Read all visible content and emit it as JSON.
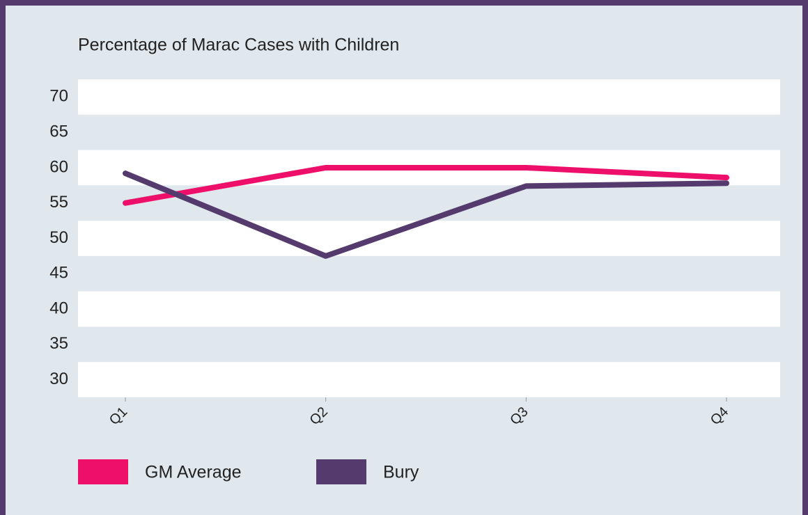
{
  "chart_data": {
    "type": "line",
    "title": "Percentage of Marac Cases with Children",
    "categories": [
      "Q1",
      "Q2",
      "Q3",
      "Q4"
    ],
    "series": [
      {
        "name": "GM Average",
        "color": "#ee0f6a",
        "values": [
          55,
          60,
          60,
          58.6
        ]
      },
      {
        "name": "Bury",
        "color": "#553a6e",
        "values": [
          59.2,
          47.5,
          57.4,
          57.8
        ]
      }
    ],
    "ylim": [
      27.5,
      72.5
    ],
    "yticks": [
      30,
      35,
      40,
      45,
      50,
      55,
      60,
      65,
      70
    ],
    "grid": "banded"
  }
}
